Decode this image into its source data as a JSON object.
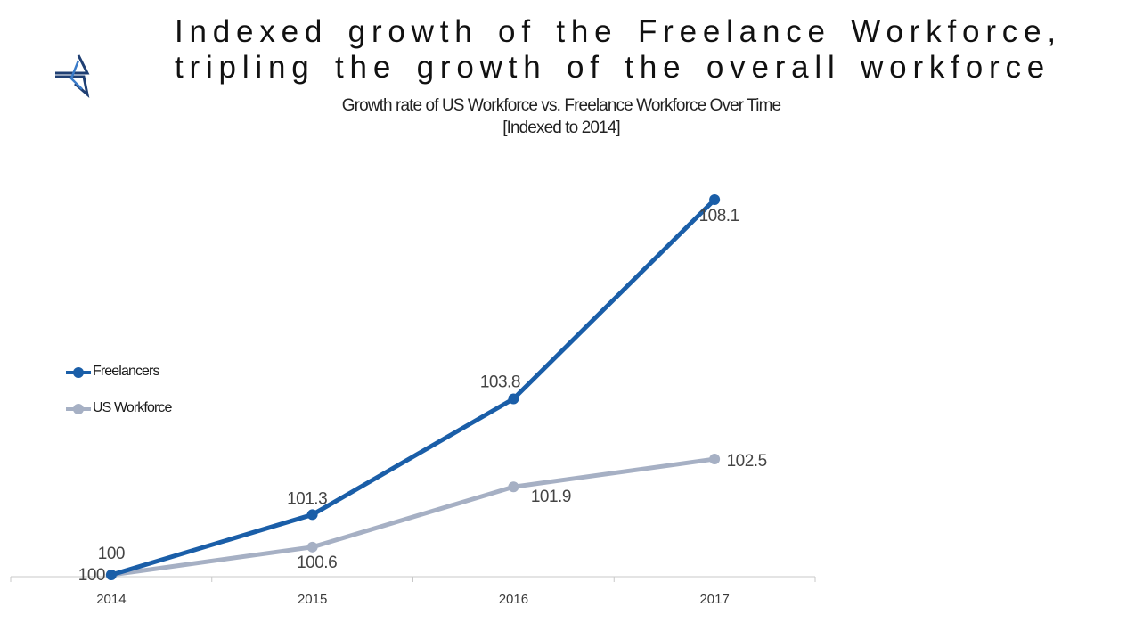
{
  "title": {
    "line1": "Indexed growth of the  Freelance Workforce,",
    "line2": "tripling the growth of the overall workforce"
  },
  "logo": {
    "icon": "abstract-triangle-logo-icon",
    "color": "#1f3f73"
  },
  "chart_data": {
    "type": "line",
    "title": "Growth rate of US Workforce vs. Freelance Workforce Over Time",
    "subtitle": "[Indexed to 2014]",
    "categories": [
      "2014",
      "2015",
      "2016",
      "2017"
    ],
    "series": [
      {
        "name": "Freelancers",
        "values": [
          100,
          101.3,
          103.8,
          108.1
        ],
        "labels": [
          "100",
          "101.3",
          "103.8",
          "108.1"
        ],
        "color": "#1a5ea8"
      },
      {
        "name": "US Workforce",
        "values": [
          100,
          100.6,
          101.9,
          102.5
        ],
        "labels": [
          "100",
          "100.6",
          "101.9",
          "102.5"
        ],
        "color": "#a6b0c4"
      }
    ],
    "ylim": [
      100,
      108.1
    ],
    "grid": false,
    "legend": "left"
  }
}
